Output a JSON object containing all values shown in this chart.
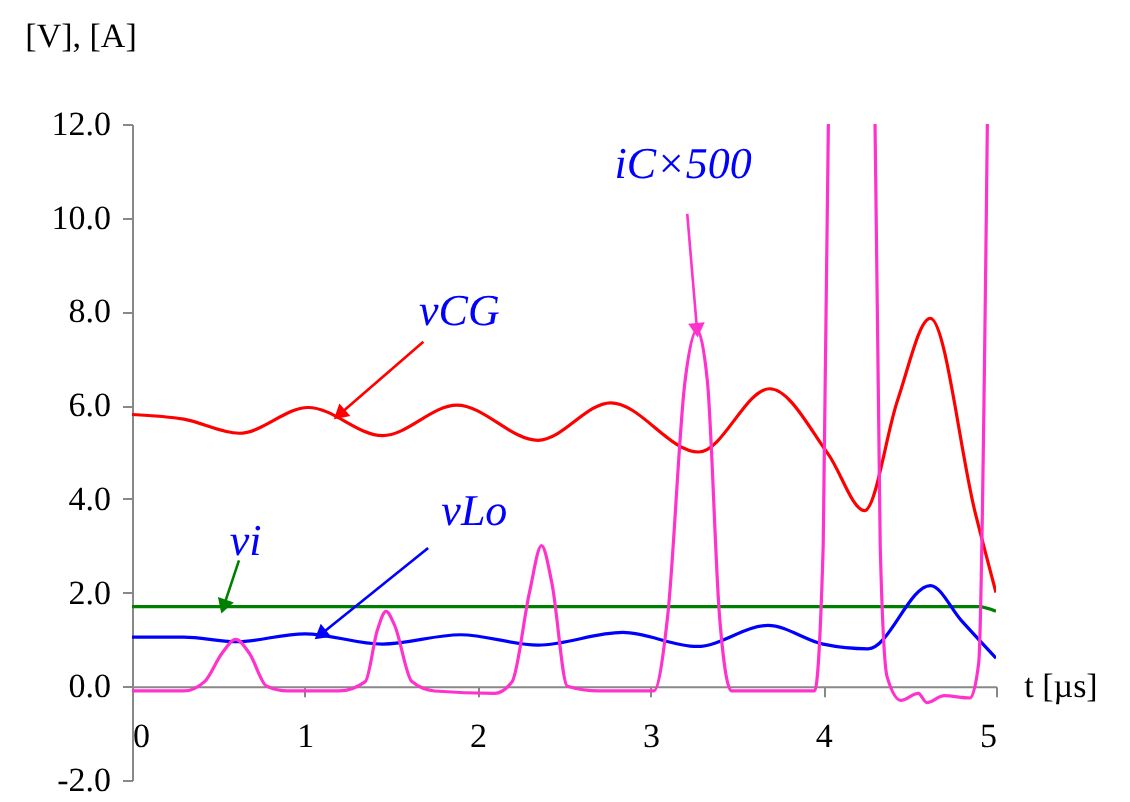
{
  "chart_data": {
    "type": "line",
    "xlabel": "t [µs]",
    "ylabel": "[V], [A]",
    "x": [
      0,
      0.3,
      0.62,
      1.02,
      1.45,
      1.88,
      2.35,
      2.77,
      3.28,
      3.69,
      4.03,
      4.24,
      4.43,
      4.62,
      4.88,
      5.0
    ],
    "series": [
      {
        "color": "#ff0000",
        "values": [
          5.8,
          5.7,
          5.4,
          5.95,
          5.35,
          6.0,
          5.25,
          6.05,
          5.0,
          6.35,
          4.95,
          3.75,
          6.1,
          7.85,
          3.7,
          2.0
        ]
      },
      {
        "color": "#008000",
        "x": [
          0,
          1,
          2,
          3,
          4,
          4.9,
          5.0
        ],
        "values": [
          1.7,
          1.7,
          1.7,
          1.7,
          1.7,
          1.7,
          1.6
        ]
      },
      {
        "color": "#0000ff",
        "x": [
          0,
          0.3,
          0.6,
          1.0,
          1.45,
          1.9,
          2.35,
          2.84,
          3.27,
          3.68,
          4.0,
          4.26,
          4.62,
          4.8,
          5.0
        ],
        "values": [
          1.05,
          1.05,
          0.95,
          1.12,
          0.9,
          1.1,
          0.88,
          1.15,
          0.85,
          1.3,
          0.9,
          0.8,
          2.15,
          1.4,
          0.6
        ]
      },
      {
        "color": "#ff33cc",
        "x": [
          0,
          0.3,
          0.42,
          0.52,
          0.6,
          0.68,
          0.78,
          0.9,
          1.2,
          1.35,
          1.42,
          1.47,
          1.52,
          1.62,
          1.75,
          2.1,
          2.2,
          2.3,
          2.37,
          2.43,
          2.52,
          2.7,
          3.02,
          3.1,
          3.2,
          3.27,
          3.33,
          3.4,
          3.47,
          3.7,
          3.95,
          4.0,
          4.03,
          4.15,
          4.3,
          4.33,
          4.37,
          4.45,
          4.55,
          4.6,
          4.7,
          4.85,
          4.9,
          4.95
        ],
        "values": [
          -0.1,
          -0.1,
          0.1,
          0.7,
          1.0,
          0.7,
          0.0,
          -0.1,
          -0.1,
          0.1,
          1.2,
          1.6,
          1.3,
          0.1,
          -0.1,
          -0.15,
          0.1,
          2.0,
          3.0,
          2.2,
          0.0,
          -0.1,
          -0.1,
          1.5,
          6.5,
          7.6,
          6.5,
          1.5,
          -0.1,
          -0.1,
          -0.1,
          3.0,
          12.0,
          null,
          12.0,
          3.0,
          0.2,
          -0.3,
          -0.15,
          -0.35,
          -0.2,
          -0.25,
          0.5,
          12.0
        ]
      }
    ],
    "annotations": [
      {
        "text": "vCG",
        "x": 1.2,
        "y": 5.8
      },
      {
        "text": "vi",
        "x": 0.53,
        "y": 1.7
      },
      {
        "text": "vLo",
        "x": 1.09,
        "y": 1.1
      },
      {
        "text": "iC×500",
        "x": 3.27,
        "y": 7.6
      }
    ],
    "xlim": [
      0,
      5
    ],
    "xticks": [
      0,
      1,
      2,
      3,
      4,
      5
    ],
    "ylim": [
      -2,
      12
    ],
    "yticks": [
      {
        "value": -2,
        "label": "-2.0"
      },
      {
        "value": 0,
        "label": "0.0"
      },
      {
        "value": 2,
        "label": "2.0"
      },
      {
        "value": 4,
        "label": "4.0"
      },
      {
        "value": 6,
        "label": "6.0"
      },
      {
        "value": 8,
        "label": "8.0"
      },
      {
        "value": 10,
        "label": "10.0"
      },
      {
        "value": 12,
        "label": "12.0"
      }
    ],
    "grid": false,
    "legend": false,
    "marker": "none",
    "line_style": "solid"
  }
}
